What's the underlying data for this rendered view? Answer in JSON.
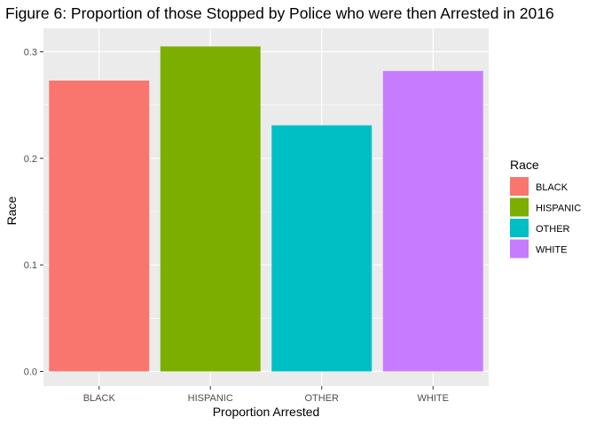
{
  "chart_data": {
    "type": "bar",
    "title": "Figure 6: Proportion of those Stopped by Police who were then Arrested in 2016",
    "xlabel": "Proportion Arrested",
    "ylabel": "Race",
    "categories": [
      "BLACK",
      "HISPANIC",
      "OTHER",
      "WHITE"
    ],
    "values": [
      0.273,
      0.305,
      0.231,
      0.282
    ],
    "ylim": [
      0,
      0.315
    ],
    "yticks": [
      0.0,
      0.1,
      0.2,
      0.3
    ],
    "ytick_labels": [
      "0.0",
      "0.1",
      "0.2",
      "0.3"
    ],
    "grid": true,
    "legend": {
      "title": "Race",
      "position": "right",
      "entries": [
        "BLACK",
        "HISPANIC",
        "OTHER",
        "WHITE"
      ]
    },
    "colors": {
      "BLACK": "#F8766D",
      "HISPANIC": "#7CAE00",
      "OTHER": "#00BFC4",
      "WHITE": "#C77CFF"
    },
    "panel_background": "#EBEBEB",
    "grid_color": "#FFFFFF"
  }
}
